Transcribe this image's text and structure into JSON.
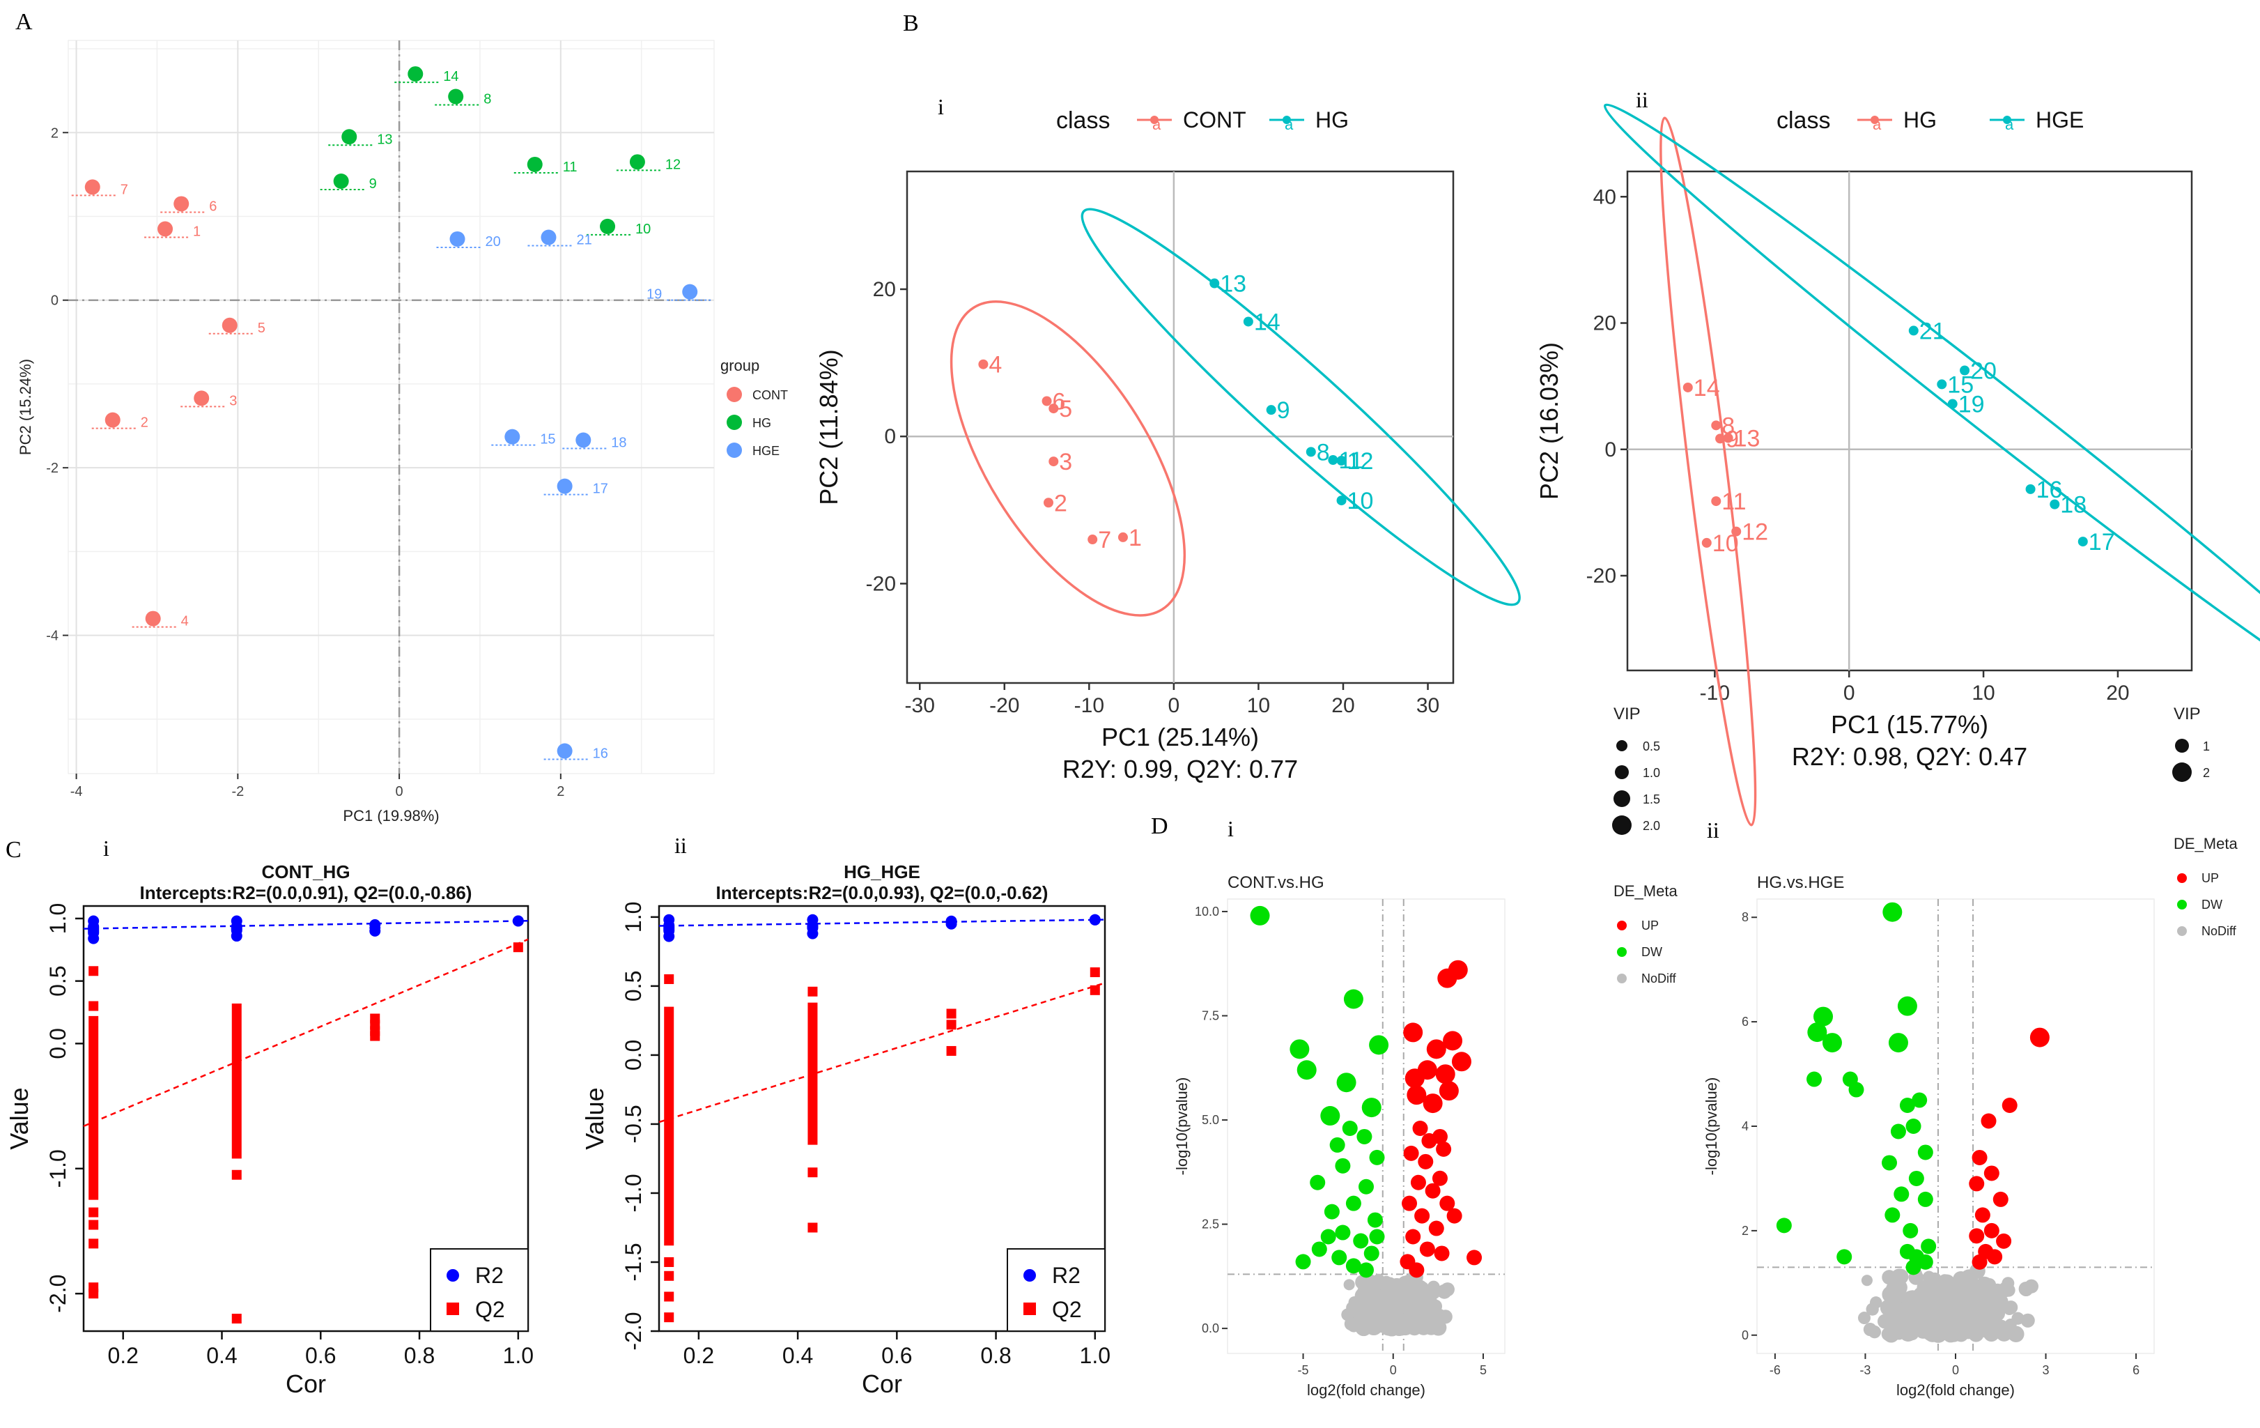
{
  "panel_labels": {
    "A": "A",
    "B": "B",
    "C": "C",
    "D": "D"
  },
  "sub_labels": {
    "Bi": "i",
    "Bii": "ii",
    "Ci": "i",
    "Cii": "ii",
    "Di": "i",
    "Dii": "ii"
  },
  "colors": {
    "CONT": "#F8766D",
    "HG": "#00BA38",
    "HGE": "#619CFF",
    "teal": "#00BFC4",
    "salmon": "#F8766D",
    "up": "#FF0000",
    "dw": "#00E000",
    "nodiff": "#BEBEBE",
    "r2": "#0000FF",
    "q2": "#FF0000"
  },
  "chart_data": [
    {
      "id": "A",
      "type": "scatter",
      "xlabel": "PC1 (19.98%)",
      "ylabel": "PC2 (15.24%)",
      "xlim": [
        -4.1,
        3.9
      ],
      "ylim": [
        -5.65,
        3.1
      ],
      "xticks": [
        -4,
        -2,
        0,
        2
      ],
      "yticks": [
        -4,
        -2,
        0,
        2
      ],
      "legend_title": "group",
      "legend": [
        "CONT",
        "HG",
        "HGE"
      ],
      "points": [
        {
          "label": "7",
          "group": "CONT",
          "x": -3.8,
          "y": 1.35
        },
        {
          "label": "6",
          "group": "CONT",
          "x": -2.7,
          "y": 1.15
        },
        {
          "label": "1",
          "group": "CONT",
          "x": -2.9,
          "y": 0.85
        },
        {
          "label": "5",
          "group": "CONT",
          "x": -2.1,
          "y": -0.3
        },
        {
          "label": "3",
          "group": "CONT",
          "x": -2.45,
          "y": -1.17
        },
        {
          "label": "2",
          "group": "CONT",
          "x": -3.55,
          "y": -1.43
        },
        {
          "label": "4",
          "group": "CONT",
          "x": -3.05,
          "y": -3.8
        },
        {
          "label": "14",
          "group": "HG",
          "x": 0.2,
          "y": 2.7
        },
        {
          "label": "8",
          "group": "HG",
          "x": 0.7,
          "y": 2.43
        },
        {
          "label": "13",
          "group": "HG",
          "x": -0.62,
          "y": 1.95
        },
        {
          "label": "9",
          "group": "HG",
          "x": -0.72,
          "y": 1.42
        },
        {
          "label": "11",
          "group": "HG",
          "x": 1.68,
          "y": 1.62
        },
        {
          "label": "12",
          "group": "HG",
          "x": 2.95,
          "y": 1.65
        },
        {
          "label": "10",
          "group": "HG",
          "x": 2.58,
          "y": 0.88
        },
        {
          "label": "20",
          "group": "HGE",
          "x": 0.72,
          "y": 0.73
        },
        {
          "label": "21",
          "group": "HGE",
          "x": 1.85,
          "y": 0.75
        },
        {
          "label": "19",
          "group": "HGE",
          "x": 3.6,
          "y": 0.1
        },
        {
          "label": "15",
          "group": "HGE",
          "x": 1.4,
          "y": -1.63
        },
        {
          "label": "18",
          "group": "HGE",
          "x": 2.28,
          "y": -1.67
        },
        {
          "label": "17",
          "group": "HGE",
          "x": 2.05,
          "y": -2.22
        },
        {
          "label": "16",
          "group": "HGE",
          "x": 2.05,
          "y": -5.38
        }
      ]
    },
    {
      "id": "Bi",
      "type": "scatter",
      "legend_title": "class",
      "legend": [
        "CONT",
        "HG"
      ],
      "xlabel": "PC1 (25.14%)",
      "ylabel": "PC2 (11.84%)",
      "subtitle": "R2Y: 0.99, Q2Y: 0.77",
      "xlim": [
        -31.5,
        33
      ],
      "ylim": [
        -33.5,
        36
      ],
      "xticks": [
        -30,
        -20,
        -10,
        0,
        10,
        20,
        30
      ],
      "yticks": [
        -20,
        0,
        20
      ],
      "points": [
        {
          "label": "4",
          "group": "CONT",
          "x": -22.5,
          "y": 9.8
        },
        {
          "label": "6",
          "group": "CONT",
          "x": -15,
          "y": 4.8
        },
        {
          "label": "5",
          "group": "CONT",
          "x": -14.2,
          "y": 3.8
        },
        {
          "label": "3",
          "group": "CONT",
          "x": -14.2,
          "y": -3.4
        },
        {
          "label": "2",
          "group": "CONT",
          "x": -14.8,
          "y": -9
        },
        {
          "label": "7",
          "group": "CONT",
          "x": -9.6,
          "y": -14
        },
        {
          "label": "1",
          "group": "CONT",
          "x": -6,
          "y": -13.7
        },
        {
          "label": "13",
          "group": "HG",
          "x": 4.8,
          "y": 20.8
        },
        {
          "label": "14",
          "group": "HG",
          "x": 8.8,
          "y": 15.6
        },
        {
          "label": "9",
          "group": "HG",
          "x": 11.5,
          "y": 3.6
        },
        {
          "label": "8",
          "group": "HG",
          "x": 16.2,
          "y": -2.1
        },
        {
          "label": "11",
          "group": "HG",
          "x": 18.8,
          "y": -3.2
        },
        {
          "label": "12",
          "group": "HG",
          "x": 19.8,
          "y": -3.3
        },
        {
          "label": "10",
          "group": "HG",
          "x": 19.8,
          "y": -8.7
        }
      ]
    },
    {
      "id": "Bii",
      "type": "scatter",
      "legend_title": "class",
      "legend": [
        "HG",
        "HGE"
      ],
      "xlabel": "PC1 (15.77%)",
      "ylabel": "PC2 (16.03%)",
      "subtitle": "R2Y: 0.98, Q2Y: 0.47",
      "xlim": [
        -16.5,
        25.5
      ],
      "ylim": [
        -35,
        44
      ],
      "xticks": [
        -10,
        0,
        10,
        20
      ],
      "yticks": [
        -20,
        0,
        20,
        40
      ],
      "points": [
        {
          "label": "14",
          "group": "HG",
          "x": -12,
          "y": 9.8
        },
        {
          "label": "8",
          "group": "HG",
          "x": -9.9,
          "y": 3.8
        },
        {
          "label": "9",
          "group": "HG",
          "x": -9.6,
          "y": 1.7
        },
        {
          "label": "13",
          "group": "HG",
          "x": -9.0,
          "y": 1.8
        },
        {
          "label": "11",
          "group": "HG",
          "x": -9.9,
          "y": -8.2
        },
        {
          "label": "12",
          "group": "HG",
          "x": -8.4,
          "y": -13
        },
        {
          "label": "10",
          "group": "HG",
          "x": -10.6,
          "y": -14.8
        },
        {
          "label": "21",
          "group": "HGE",
          "x": 4.8,
          "y": 18.8
        },
        {
          "label": "20",
          "group": "HGE",
          "x": 8.6,
          "y": 12.5
        },
        {
          "label": "15",
          "group": "HGE",
          "x": 6.9,
          "y": 10.3
        },
        {
          "label": "19",
          "group": "HGE",
          "x": 7.7,
          "y": 7.2
        },
        {
          "label": "16",
          "group": "HGE",
          "x": 13.5,
          "y": -6.3
        },
        {
          "label": "18",
          "group": "HGE",
          "x": 15.3,
          "y": -8.7
        },
        {
          "label": "17",
          "group": "HGE",
          "x": 17.4,
          "y": -14.6
        }
      ]
    },
    {
      "id": "Ci",
      "type": "scatter",
      "title": "CONT_HG",
      "subtitle": "Intercepts:R2=(0.0,0.91), Q2=(0.0,-0.86)",
      "xlabel": "Cor",
      "ylabel": "Value",
      "xlim": [
        0.12,
        1.02
      ],
      "ylim": [
        -2.3,
        1.1
      ],
      "xticks": [
        0.2,
        0.4,
        0.6,
        0.8,
        1.0
      ],
      "xtick_labels": [
        "0.2",
        "0.4",
        "0.6",
        "0.8",
        "1.0"
      ],
      "yticks": [
        -2.0,
        -1.0,
        0.0,
        0.5,
        1.0
      ],
      "ytick_labels": [
        "-2.0",
        "-1.0",
        "0.0",
        "0.5",
        "1.0"
      ],
      "legend": [
        "R2",
        "Q2"
      ],
      "r2_cols": [
        0.14,
        0.43,
        0.71,
        1.0
      ],
      "r2_ranges": [
        [
          0.84,
          0.98
        ],
        [
          0.86,
          0.98
        ],
        [
          0.9,
          0.95
        ],
        [
          0.98,
          0.98
        ]
      ],
      "r2_line": [
        [
          0.0,
          0.91
        ],
        [
          1.0,
          0.98
        ]
      ],
      "q2_points": [
        {
          "x": 0.14,
          "y": 0.58
        },
        {
          "x": 0.14,
          "y": 0.3
        },
        {
          "x": 0.14,
          "y": -1.35
        },
        {
          "x": 0.14,
          "y": -1.45
        },
        {
          "x": 0.14,
          "y": -1.6
        },
        {
          "x": 0.14,
          "y": -1.95
        },
        {
          "x": 0.14,
          "y": -2.0
        },
        {
          "x": 0.43,
          "y": -1.05
        },
        {
          "x": 0.43,
          "y": -2.2
        },
        {
          "x": 0.71,
          "y": 0.2
        },
        {
          "x": 0.71,
          "y": 0.15
        },
        {
          "x": 0.71,
          "y": 0.1
        },
        {
          "x": 0.71,
          "y": 0.06
        },
        {
          "x": 1.0,
          "y": 0.77
        }
      ],
      "q2_bars": [
        {
          "x": 0.14,
          "y0": -1.25,
          "y1": 0.22
        },
        {
          "x": 0.43,
          "y0": -0.92,
          "y1": 0.32
        }
      ],
      "q2_line": [
        [
          0.0,
          -0.86
        ],
        [
          1.0,
          0.8
        ]
      ]
    },
    {
      "id": "Cii",
      "type": "scatter",
      "title": "HG_HGE",
      "subtitle": "Intercepts:R2=(0.0,0.93), Q2=(0.0,-0.62)",
      "xlabel": "Cor",
      "ylabel": "Value",
      "xlim": [
        0.12,
        1.02
      ],
      "ylim": [
        -2.0,
        1.08
      ],
      "xticks": [
        0.2,
        0.4,
        0.6,
        0.8,
        1.0
      ],
      "xtick_labels": [
        "0.2",
        "0.4",
        "0.6",
        "0.8",
        "1.0"
      ],
      "yticks": [
        -2.0,
        -1.5,
        -1.0,
        -0.5,
        0.0,
        0.5,
        1.0
      ],
      "ytick_labels": [
        "-2.0",
        "-1.5",
        "-1.0",
        "-0.5",
        "0.0",
        "0.5",
        "1.0"
      ],
      "legend": [
        "R2",
        "Q2"
      ],
      "r2_cols": [
        0.14,
        0.43,
        0.71,
        1.0
      ],
      "r2_ranges": [
        [
          0.86,
          0.98
        ],
        [
          0.88,
          0.98
        ],
        [
          0.95,
          0.97
        ],
        [
          0.98,
          0.98
        ]
      ],
      "r2_line": [
        [
          0.0,
          0.93
        ],
        [
          1.0,
          0.98
        ]
      ],
      "q2_points": [
        {
          "x": 0.14,
          "y": 0.55
        },
        {
          "x": 0.14,
          "y": -1.5
        },
        {
          "x": 0.14,
          "y": -1.6
        },
        {
          "x": 0.14,
          "y": -1.75
        },
        {
          "x": 0.14,
          "y": -1.9
        },
        {
          "x": 0.43,
          "y": 0.46
        },
        {
          "x": 0.43,
          "y": -0.85
        },
        {
          "x": 0.43,
          "y": -1.25
        },
        {
          "x": 0.71,
          "y": 0.3
        },
        {
          "x": 0.71,
          "y": 0.22
        },
        {
          "x": 0.71,
          "y": 0.03
        },
        {
          "x": 1.0,
          "y": 0.6
        },
        {
          "x": 1.0,
          "y": 0.47
        }
      ],
      "q2_bars": [
        {
          "x": 0.14,
          "y0": -1.38,
          "y1": 0.35
        },
        {
          "x": 0.43,
          "y0": -0.65,
          "y1": 0.38
        }
      ],
      "q2_line": [
        [
          0.0,
          -0.62
        ],
        [
          1.0,
          0.5
        ]
      ]
    },
    {
      "id": "Di",
      "type": "scatter",
      "title": "CONT.vs.HG",
      "xlabel": "log2(fold change)",
      "ylabel": "-log10(pvalue)",
      "xlim": [
        -9.2,
        6.2
      ],
      "ylim": [
        -0.6,
        10.3
      ],
      "xticks": [
        -5,
        0,
        5
      ],
      "yticks": [
        0.0,
        2.5,
        5.0,
        7.5,
        10.0
      ],
      "ytick_labels": [
        "0.0",
        "2.5",
        "5.0",
        "7.5",
        "10.0"
      ],
      "vlines": [
        -0.58,
        0.58
      ],
      "hline": 1.3,
      "vip_legend_title": "VIP",
      "vip_legend": [
        "0.5",
        "1.0",
        "1.5",
        "2.0"
      ],
      "de_legend_title": "DE_Meta",
      "de_legend": [
        "UP",
        "DW",
        "NoDiff"
      ],
      "up_points": [
        [
          3.0,
          8.4
        ],
        [
          3.6,
          8.6
        ],
        [
          1.1,
          7.1
        ],
        [
          2.4,
          6.7
        ],
        [
          3.3,
          6.9
        ],
        [
          3.8,
          6.4
        ],
        [
          2.9,
          6.1
        ],
        [
          1.9,
          6.2
        ],
        [
          1.3,
          5.6
        ],
        [
          2.2,
          5.4
        ],
        [
          3.1,
          5.7
        ],
        [
          1.5,
          4.8
        ],
        [
          2.6,
          4.6
        ],
        [
          1.0,
          4.2
        ],
        [
          1.8,
          4.0
        ],
        [
          2.8,
          4.3
        ],
        [
          1.4,
          3.5
        ],
        [
          2.2,
          3.3
        ],
        [
          3.0,
          3.0
        ],
        [
          0.9,
          3.0
        ],
        [
          1.6,
          2.7
        ],
        [
          2.4,
          2.4
        ],
        [
          1.1,
          2.2
        ],
        [
          1.9,
          1.9
        ],
        [
          2.7,
          1.8
        ],
        [
          0.8,
          1.6
        ],
        [
          1.3,
          1.4
        ],
        [
          4.5,
          1.7
        ],
        [
          3.4,
          2.7
        ],
        [
          2.6,
          3.6
        ],
        [
          2.0,
          4.5
        ],
        [
          1.2,
          6.0
        ]
      ],
      "dw_points": [
        [
          -7.4,
          9.9
        ],
        [
          -2.2,
          7.9
        ],
        [
          -5.2,
          6.7
        ],
        [
          -4.8,
          6.2
        ],
        [
          -0.8,
          6.8
        ],
        [
          -2.6,
          5.9
        ],
        [
          -1.2,
          5.3
        ],
        [
          -3.5,
          5.1
        ],
        [
          -2.4,
          4.8
        ],
        [
          -1.6,
          4.6
        ],
        [
          -3.1,
          4.4
        ],
        [
          -0.9,
          4.1
        ],
        [
          -2.8,
          3.9
        ],
        [
          -4.2,
          3.5
        ],
        [
          -1.5,
          3.4
        ],
        [
          -2.2,
          3.0
        ],
        [
          -3.4,
          2.8
        ],
        [
          -1.0,
          2.6
        ],
        [
          -2.8,
          2.3
        ],
        [
          -1.8,
          2.1
        ],
        [
          -4.1,
          1.9
        ],
        [
          -3.0,
          1.7
        ],
        [
          -5.0,
          1.6
        ],
        [
          -2.2,
          1.5
        ],
        [
          -1.2,
          1.8
        ],
        [
          -3.6,
          2.2
        ],
        [
          -0.9,
          2.2
        ],
        [
          -1.5,
          1.4
        ]
      ],
      "gray_center": [
        0.3,
        0.4
      ]
    },
    {
      "id": "Dii",
      "type": "scatter",
      "title": "HG.vs.HGE",
      "xlabel": "log2(fold change)",
      "ylabel": "-log10(pvalue)",
      "xlim": [
        -6.6,
        6.6
      ],
      "ylim": [
        -0.35,
        8.35
      ],
      "xticks": [
        -6,
        -3,
        0,
        3,
        6
      ],
      "yticks": [
        0,
        2,
        4,
        6,
        8
      ],
      "ytick_labels": [
        "0",
        "2",
        "4",
        "6",
        "8"
      ],
      "vlines": [
        -0.58,
        0.58
      ],
      "hline": 1.3,
      "vip_legend_title": "VIP",
      "vip_legend": [
        "1",
        "2"
      ],
      "de_legend_title": "DE_Meta",
      "de_legend": [
        "UP",
        "DW",
        "NoDiff"
      ],
      "up_points": [
        [
          2.8,
          5.7
        ],
        [
          1.8,
          4.4
        ],
        [
          1.1,
          4.1
        ],
        [
          0.8,
          3.4
        ],
        [
          1.2,
          3.1
        ],
        [
          0.7,
          2.9
        ],
        [
          1.5,
          2.6
        ],
        [
          0.9,
          2.3
        ],
        [
          1.2,
          2.0
        ],
        [
          0.7,
          1.9
        ],
        [
          1.6,
          1.8
        ],
        [
          1.0,
          1.6
        ],
        [
          1.3,
          1.5
        ],
        [
          0.8,
          1.4
        ]
      ],
      "dw_points": [
        [
          -2.1,
          8.1
        ],
        [
          -4.4,
          6.1
        ],
        [
          -4.6,
          5.8
        ],
        [
          -1.6,
          6.3
        ],
        [
          -4.1,
          5.6
        ],
        [
          -3.5,
          4.9
        ],
        [
          -4.7,
          4.9
        ],
        [
          -1.9,
          5.6
        ],
        [
          -3.3,
          4.7
        ],
        [
          -1.6,
          4.4
        ],
        [
          -1.2,
          4.5
        ],
        [
          -1.4,
          4.0
        ],
        [
          -1.9,
          3.9
        ],
        [
          -1.0,
          3.5
        ],
        [
          -2.2,
          3.3
        ],
        [
          -1.3,
          3.0
        ],
        [
          -1.8,
          2.7
        ],
        [
          -2.1,
          2.3
        ],
        [
          -1.0,
          2.6
        ],
        [
          -1.5,
          2.0
        ],
        [
          -1.6,
          1.6
        ],
        [
          -0.9,
          1.7
        ],
        [
          -1.3,
          1.5
        ],
        [
          -5.7,
          2.1
        ],
        [
          -3.7,
          1.5
        ],
        [
          -1.4,
          1.3
        ],
        [
          -1.0,
          1.4
        ]
      ],
      "gray_center": [
        -0.2,
        0.35
      ]
    }
  ]
}
